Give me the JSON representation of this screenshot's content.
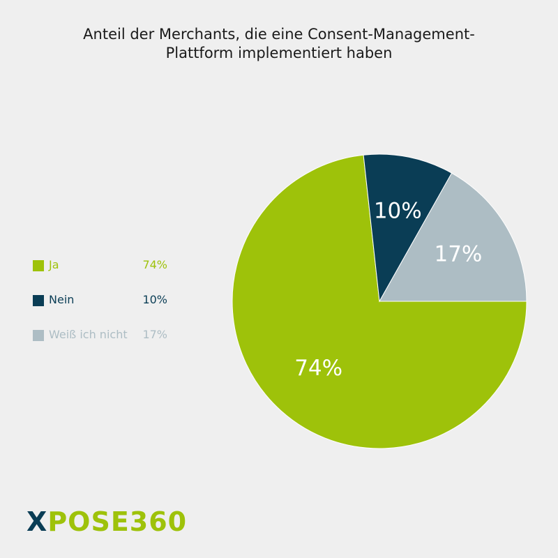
{
  "chart_data": {
    "type": "pie",
    "title": "Anteil der Merchants, die eine Consent-Management-Plattform implementiert haben",
    "series": [
      {
        "name": "Ja",
        "value": 74,
        "label": "74%",
        "color": "#9ec20a"
      },
      {
        "name": "Nein",
        "value": 10,
        "label": "10%",
        "color": "#0a3d55"
      },
      {
        "name": "Weiß ich nicht",
        "value": 17,
        "label": "17%",
        "color": "#adbdc4"
      }
    ],
    "legend_placement": "left"
  },
  "title_lines": [
    "Anteil der Merchants, die eine Consent-Management-",
    "Plattform implementiert haben"
  ],
  "logo": {
    "mark": "X",
    "text": "POSE360"
  },
  "colors": {
    "background": "#efefef",
    "accent": "#9ec20a",
    "dark": "#0a3d55",
    "grey": "#adbdc4"
  }
}
